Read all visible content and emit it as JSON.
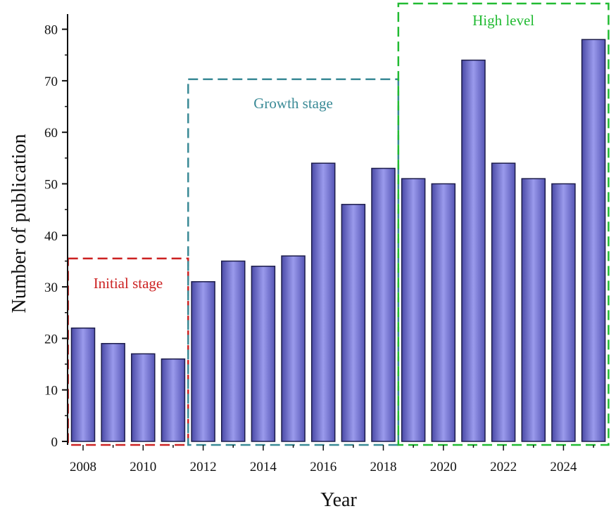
{
  "chart_data": {
    "type": "bar",
    "categories": [
      "2008",
      "2009",
      "2010",
      "2011",
      "2012",
      "2013",
      "2014",
      "2015",
      "2016",
      "2017",
      "2018",
      "2019",
      "2020",
      "2021",
      "2022",
      "2023",
      "2024",
      "2025"
    ],
    "values": [
      22,
      19,
      17,
      16,
      31,
      35,
      34,
      36,
      54,
      46,
      53,
      51,
      50,
      74,
      54,
      51,
      50,
      78
    ],
    "xlabel": "Year",
    "ylabel": "Number of publication",
    "ylim": [
      0,
      83
    ],
    "y_ticks": [
      "0",
      "10",
      "20",
      "30",
      "40",
      "50",
      "60",
      "70",
      "80"
    ],
    "x_tick_labels": [
      "2008",
      "2010",
      "2012",
      "2014",
      "2016",
      "2018",
      "2020",
      "2022",
      "2024"
    ],
    "grid": false,
    "colors": {
      "bar_top": "#c4c4f4",
      "bar_mid": "#8b8be6",
      "bar_edge": "#4848a8",
      "outline": "#1c1c4a"
    },
    "regions": [
      {
        "label": "Initial stage",
        "start": "2008",
        "end": "2011",
        "top_value": 35.5,
        "color": "#cc2222"
      },
      {
        "label": "Growth stage",
        "start": "2012",
        "end": "2018",
        "top_value": 70.3,
        "color": "#3a8a96"
      },
      {
        "label": "High level",
        "start": "2019",
        "end": "2025",
        "top_value": 85,
        "color": "#22bb33"
      }
    ]
  }
}
